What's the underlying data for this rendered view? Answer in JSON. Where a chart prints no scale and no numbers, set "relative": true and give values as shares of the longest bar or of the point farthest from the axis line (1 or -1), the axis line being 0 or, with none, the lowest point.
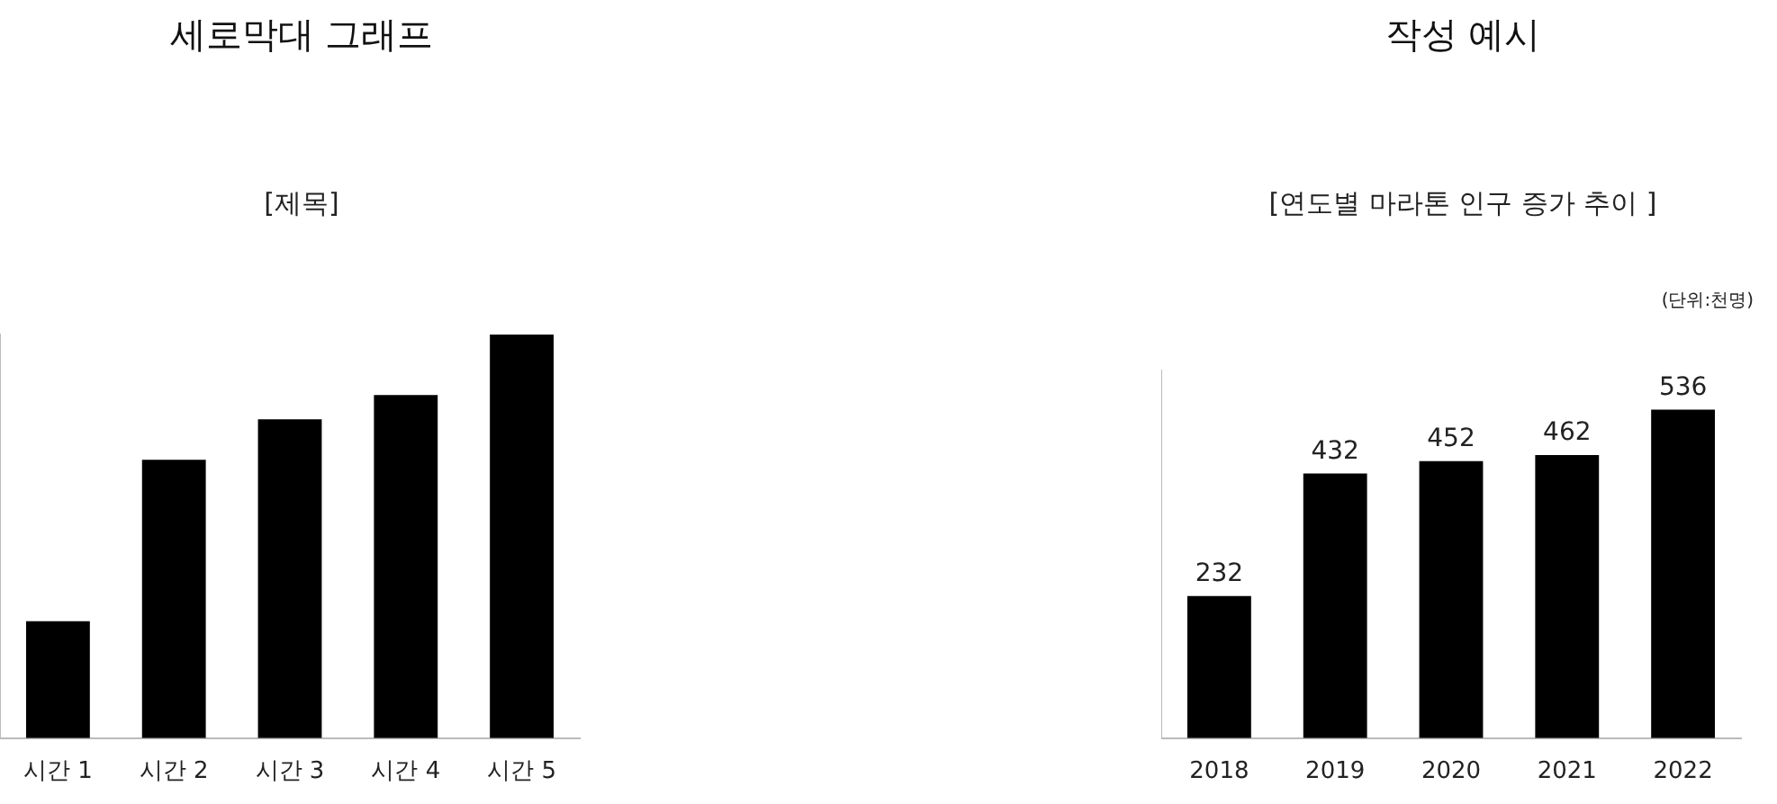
{
  "chart_data": [
    {
      "type": "bar",
      "title": "세로막대 그래프",
      "subtitle": "[제목]",
      "categories": [
        "시간 1",
        "시간 2",
        "시간 3",
        "시간 4",
        "시간 5"
      ],
      "values": [
        0.29,
        0.69,
        0.79,
        0.85,
        1
      ],
      "color": "#000000",
      "relative": true
    },
    {
      "type": "bar",
      "title": "작성 예시",
      "subtitle": "[연도별  마라톤 인구 증가 추이 ]",
      "categories": [
        "2018",
        "2019",
        "2020",
        "2021",
        "2022"
      ],
      "values": [
        232,
        432,
        452,
        462,
        536
      ],
      "color": "#000000",
      "data_labels": true,
      "tick_labels": "x",
      "annotations": [
        "(단위:천명)"
      ]
    }
  ]
}
